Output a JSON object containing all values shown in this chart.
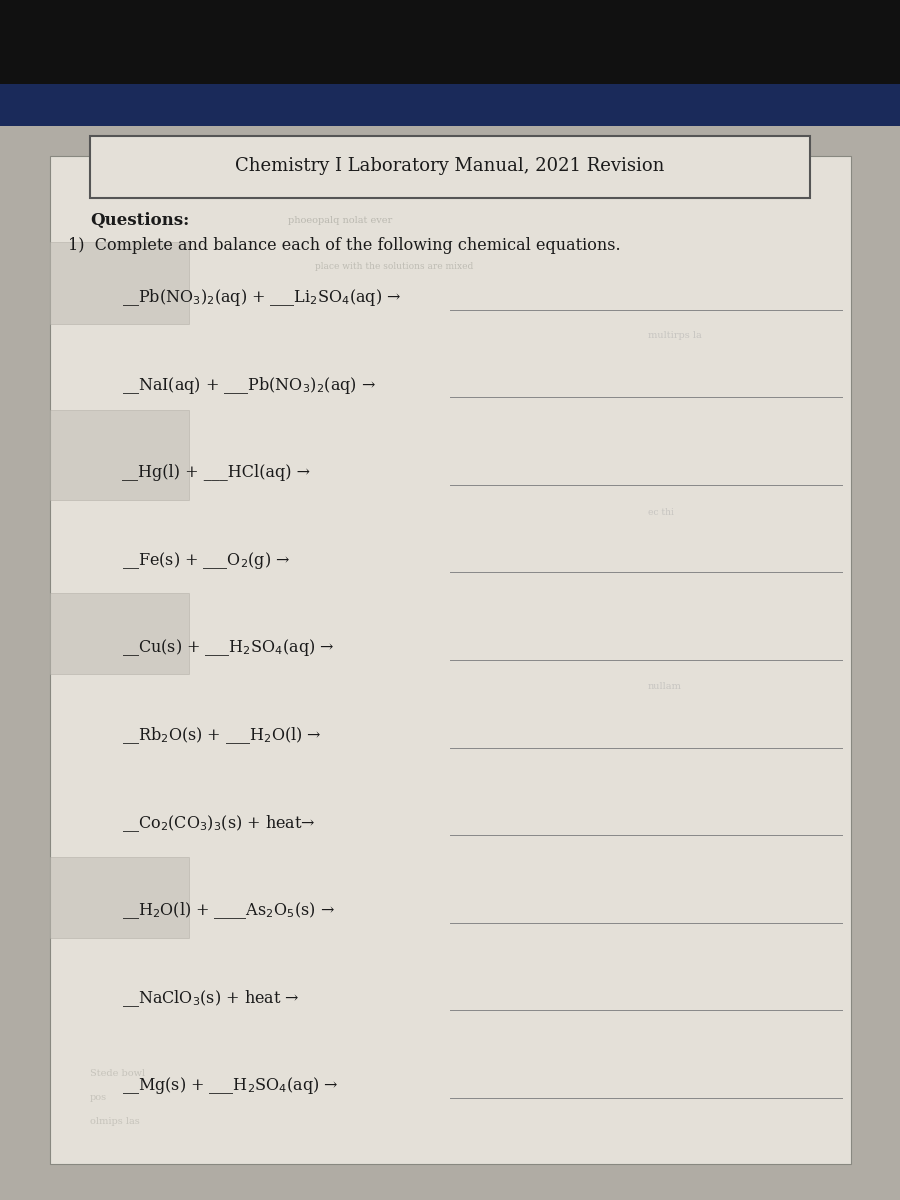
{
  "title": "Chemistry I Laboratory Manual, 2021 Revision",
  "header_bold": "Questions:",
  "instruction": "1)  Complete and balance each of the following chemical equations.",
  "equations": [
    "__Pb(NO$_3$)$_2$(aq) + ___Li$_2$SO$_4$(aq) →",
    "__NaI(aq) + ___Pb(NO$_3$)$_2$(aq) →",
    "__Hg(l) + ___HCl(aq) →",
    "__Fe(s) + ___O$_2$(g) →",
    "__Cu(s) + ___H$_2$SO$_4$(aq) →",
    "__Rb$_2$O(s) + ___H$_2$O(l) →",
    "__Co$_2$(CO$_3$)$_3$(s) + heat→",
    "__H$_2$O(l) + ____As$_2$O$_5$(s) →",
    "__NaClO$_3$(s) + heat →",
    "__Mg(s) + ___H$_2$SO$_4$(aq) →"
  ],
  "bg_dark": "#111111",
  "bg_blue": "#1a2a5a",
  "bg_gray": "#b0aca4",
  "paper_color": "#dedad4",
  "paper_inner": "#e4e0d8",
  "text_color": "#1a1a1a",
  "line_color": "#888888",
  "title_fontsize": 13,
  "eq_fontsize": 11.5,
  "header_fontsize": 12,
  "instruction_fontsize": 11.5
}
